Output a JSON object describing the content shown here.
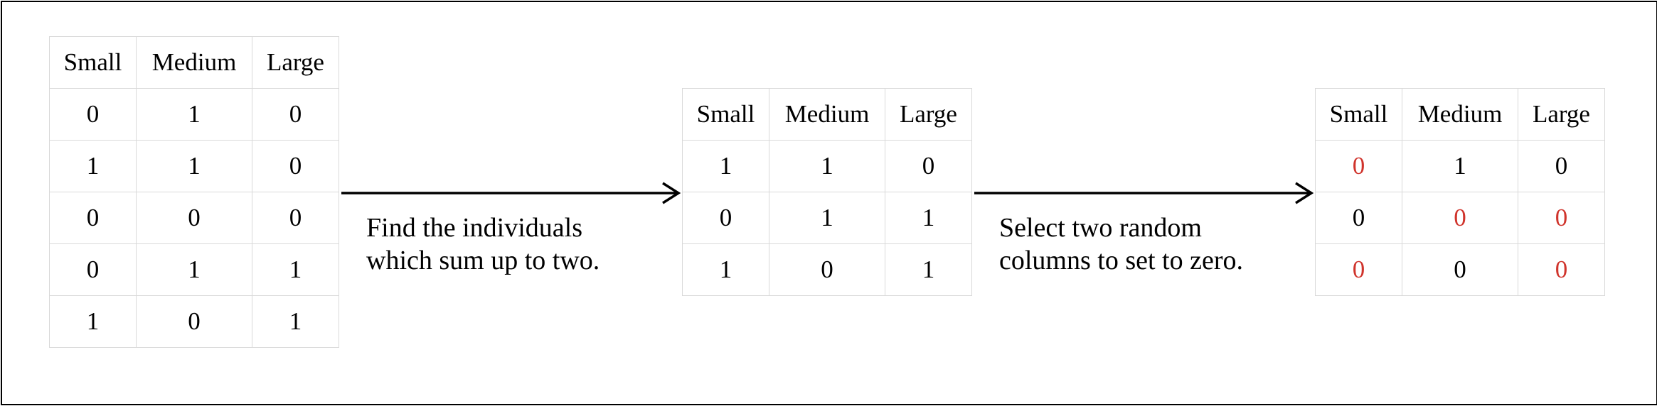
{
  "tables": [
    {
      "headers": [
        "Small",
        "Medium",
        "Large"
      ],
      "rows": [
        [
          {
            "v": "0"
          },
          {
            "v": "1"
          },
          {
            "v": "0"
          }
        ],
        [
          {
            "v": "1"
          },
          {
            "v": "1"
          },
          {
            "v": "0"
          }
        ],
        [
          {
            "v": "0"
          },
          {
            "v": "0"
          },
          {
            "v": "0"
          }
        ],
        [
          {
            "v": "0"
          },
          {
            "v": "1"
          },
          {
            "v": "1"
          }
        ],
        [
          {
            "v": "1"
          },
          {
            "v": "0"
          },
          {
            "v": "1"
          }
        ]
      ]
    },
    {
      "headers": [
        "Small",
        "Medium",
        "Large"
      ],
      "rows": [
        [
          {
            "v": "1"
          },
          {
            "v": "1"
          },
          {
            "v": "0"
          }
        ],
        [
          {
            "v": "0"
          },
          {
            "v": "1"
          },
          {
            "v": "1"
          }
        ],
        [
          {
            "v": "1"
          },
          {
            "v": "0"
          },
          {
            "v": "1"
          }
        ]
      ]
    },
    {
      "headers": [
        "Small",
        "Medium",
        "Large"
      ],
      "rows": [
        [
          {
            "v": "0",
            "red": true
          },
          {
            "v": "1"
          },
          {
            "v": "0"
          }
        ],
        [
          {
            "v": "0"
          },
          {
            "v": "0",
            "red": true
          },
          {
            "v": "0",
            "red": true
          }
        ],
        [
          {
            "v": "0",
            "red": true
          },
          {
            "v": "0"
          },
          {
            "v": "0",
            "red": true
          }
        ]
      ]
    }
  ],
  "captions": [
    {
      "line1": "Find the individuals",
      "line2": "which sum up to two."
    },
    {
      "line1": "Select two random",
      "line2": "columns to set to zero."
    }
  ],
  "colors": {
    "highlight": "#d0342c",
    "grid": "#d9d9d9",
    "arrow": "#000000"
  }
}
